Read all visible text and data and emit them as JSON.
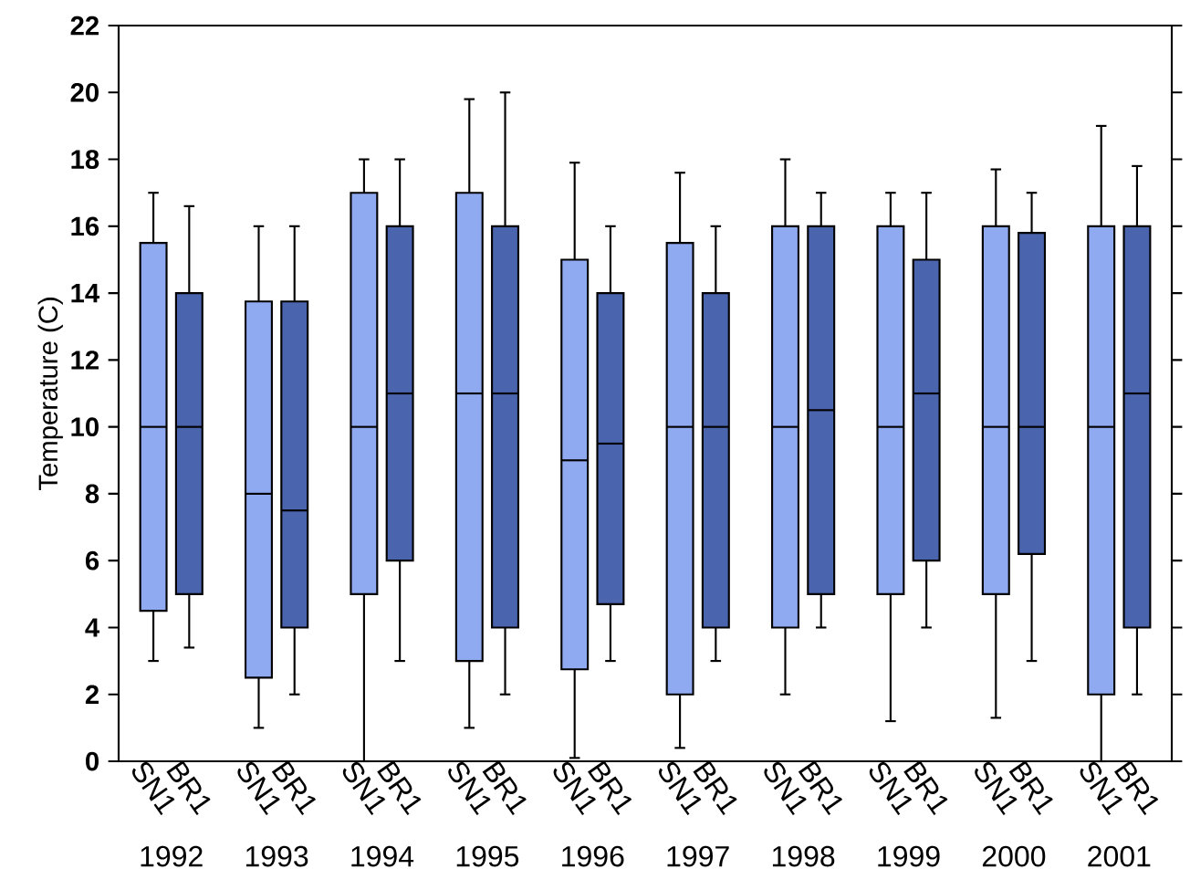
{
  "chart_data": {
    "type": "box",
    "ylabel": "Temperature (C)",
    "categories": [
      "1992",
      "1993",
      "1994",
      "1995",
      "1996",
      "1997",
      "1998",
      "1999",
      "2000",
      "2001"
    ],
    "ylim": [
      0,
      22
    ],
    "yticks": [
      0,
      2,
      4,
      6,
      8,
      10,
      12,
      14,
      16,
      18,
      20,
      22
    ],
    "series": [
      {
        "name": "SN1",
        "color": "#8faaf0",
        "boxes": [
          {
            "low": 3,
            "q1": 4.5,
            "median": 10,
            "q3": 15.5,
            "high": 17
          },
          {
            "low": 1,
            "q1": 2.5,
            "median": 8,
            "q3": 13.75,
            "high": 16
          },
          {
            "low": 0,
            "q1": 5,
            "median": 10,
            "q3": 17,
            "high": 18
          },
          {
            "low": 1,
            "q1": 3,
            "median": 11,
            "q3": 17,
            "high": 19.8
          },
          {
            "low": 0.1,
            "q1": 2.75,
            "median": 9,
            "q3": 15,
            "high": 17.9
          },
          {
            "low": 0.4,
            "q1": 2,
            "median": 10,
            "q3": 15.5,
            "high": 17.6
          },
          {
            "low": 2,
            "q1": 4,
            "median": 10,
            "q3": 16,
            "high": 18
          },
          {
            "low": 1.2,
            "q1": 5,
            "median": 10,
            "q3": 16,
            "high": 17
          },
          {
            "low": 1.3,
            "q1": 5,
            "median": 10,
            "q3": 16,
            "high": 17.7
          },
          {
            "low": 0,
            "q1": 2,
            "median": 10,
            "q3": 16,
            "high": 19
          }
        ]
      },
      {
        "name": "BR1",
        "color": "#4a64ad",
        "boxes": [
          {
            "low": 3.4,
            "q1": 5,
            "median": 10,
            "q3": 14,
            "high": 16.6
          },
          {
            "low": 2,
            "q1": 4,
            "median": 7.5,
            "q3": 13.75,
            "high": 16
          },
          {
            "low": 3,
            "q1": 6,
            "median": 11,
            "q3": 16,
            "high": 18
          },
          {
            "low": 2,
            "q1": 4,
            "median": 11,
            "q3": 16,
            "high": 20
          },
          {
            "low": 3,
            "q1": 4.7,
            "median": 9.5,
            "q3": 14,
            "high": 16
          },
          {
            "low": 3,
            "q1": 4,
            "median": 10,
            "q3": 14,
            "high": 16
          },
          {
            "low": 4,
            "q1": 5,
            "median": 10.5,
            "q3": 16,
            "high": 17
          },
          {
            "low": 4,
            "q1": 6,
            "median": 11,
            "q3": 15,
            "high": 17
          },
          {
            "low": 3,
            "q1": 6.2,
            "median": 10,
            "q3": 15.8,
            "high": 17
          },
          {
            "low": 2,
            "q1": 4,
            "median": 11,
            "q3": 16,
            "high": 17.8
          }
        ]
      }
    ]
  }
}
